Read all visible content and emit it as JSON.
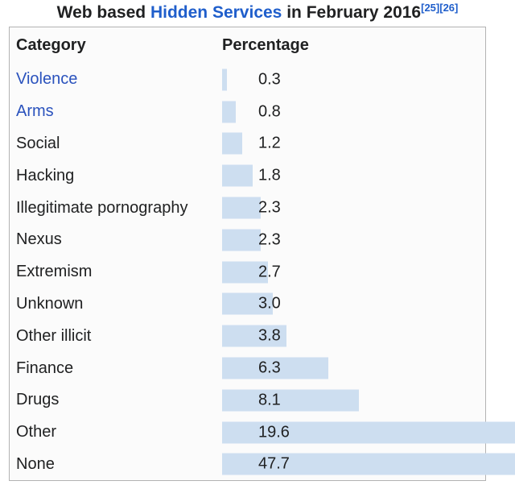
{
  "title": {
    "prefix": "Web based ",
    "link_text": "Hidden Services",
    "suffix": " in February 2016",
    "refs": [
      "[25]",
      "[26]"
    ]
  },
  "table": {
    "headers": {
      "category": "Category",
      "percentage": "Percentage"
    }
  },
  "chart_data": {
    "type": "bar",
    "orientation": "horizontal",
    "title": "Web based Hidden Services in February 2016",
    "column_headers": [
      "Category",
      "Percentage"
    ],
    "categories": [
      "Violence",
      "Arms",
      "Social",
      "Hacking",
      "Illegitimate pornography",
      "Nexus",
      "Extremism",
      "Unknown",
      "Other illicit",
      "Finance",
      "Drugs",
      "Other",
      "None"
    ],
    "values": [
      0.3,
      0.8,
      1.2,
      1.8,
      2.3,
      2.3,
      2.7,
      3.0,
      3.8,
      6.3,
      8.1,
      19.6,
      47.7
    ],
    "value_labels": [
      "0.3",
      "0.8",
      "1.2",
      "1.8",
      "2.3",
      "2.3",
      "2.7",
      "3.0",
      "3.8",
      "6.3",
      "8.1",
      "19.6",
      "47.7"
    ],
    "unit": "%",
    "linked_categories": [
      "Violence",
      "Arms"
    ],
    "references": [
      "[25]",
      "[26]"
    ],
    "legend": false,
    "grid": false
  },
  "colors": {
    "bar": "#cddef0",
    "border": "#b3b3b3",
    "table_bg": "#fbfbfb",
    "text": "#202122",
    "link_title": "#1f5ecb",
    "link_row": "#2a52bd"
  }
}
